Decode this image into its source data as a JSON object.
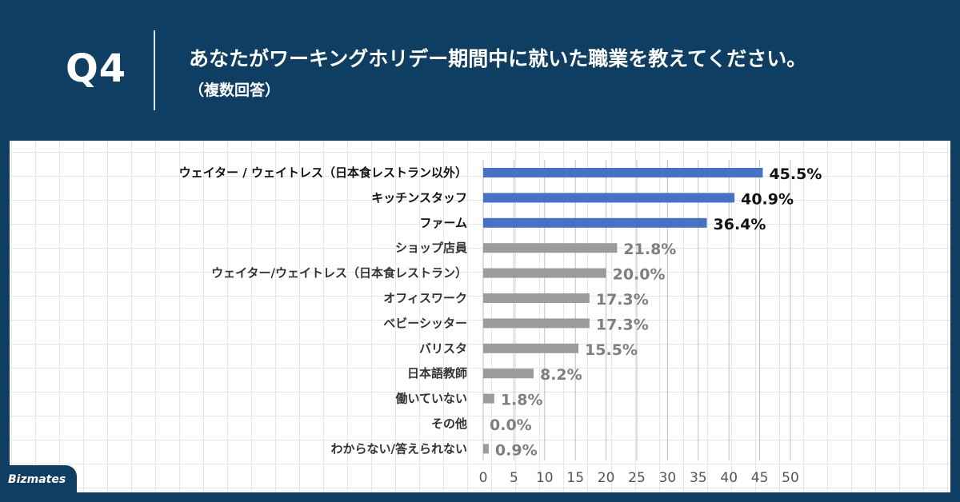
{
  "header": {
    "question_number": "Q4",
    "title": "あなたがワーキングホリデー期間中に就いた職業を教えてください。",
    "subtitle": "（複数回答）"
  },
  "brand": {
    "logo_text": "Bizmates"
  },
  "colors": {
    "background_navy": "#0e3f63",
    "highlight_bar": "#4472c4",
    "normal_bar": "#9b9b9b",
    "highlight_text": "#111111",
    "normal_text": "#7f7f7f"
  },
  "chart_data": {
    "type": "bar",
    "orientation": "horizontal",
    "categories": [
      "ウェイター / ウェイトレス（日本食レストラン以外）",
      "キッチンスタッフ",
      "ファーム",
      "ショップ店員",
      "ウェイター/ウェイトレス（日本食レストラン）",
      "オフィスワーク",
      "ベビーシッター",
      "バリスタ",
      "日本語教師",
      "働いていない",
      "その他",
      "わからない/答えられない"
    ],
    "values": [
      45.5,
      40.9,
      36.4,
      21.8,
      20.0,
      17.3,
      17.3,
      15.5,
      8.2,
      1.8,
      0.0,
      0.9
    ],
    "value_labels": [
      "45.5%",
      "40.9%",
      "36.4%",
      "21.8%",
      "20.0%",
      "17.3%",
      "17.3%",
      "15.5%",
      "8.2%",
      "1.8%",
      "0.0%",
      "0.9%"
    ],
    "highlighted": [
      true,
      true,
      true,
      false,
      false,
      false,
      false,
      false,
      false,
      false,
      false,
      false
    ],
    "x_ticks": [
      "0",
      "5",
      "10",
      "15",
      "20",
      "25",
      "30",
      "35",
      "40",
      "45",
      "50"
    ],
    "xlim": [
      0,
      50
    ],
    "grid": true
  }
}
